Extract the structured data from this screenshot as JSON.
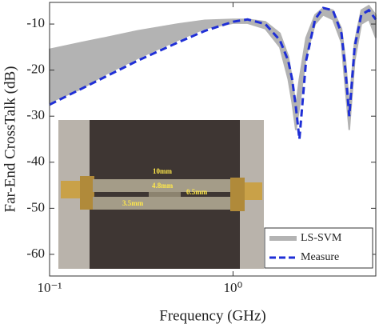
{
  "chart_data": {
    "type": "line",
    "xlabel": "Frequency (GHz)",
    "ylabel": "Far-End CrossTalk (dB)",
    "log_x": true,
    "xlim": [
      0.1,
      6
    ],
    "xticks": [
      {
        "value": 0.1,
        "label": "10⁻¹"
      },
      {
        "value": 1,
        "label": "10⁰"
      }
    ],
    "ylim": [
      -64.7,
      -5.3
    ],
    "yticks": [
      -60,
      -50,
      -40,
      -30,
      -20,
      -10
    ],
    "grid": false,
    "legend": "lower right",
    "x": [
      0.1,
      0.15,
      0.2,
      0.3,
      0.5,
      0.7,
      1,
      1.2,
      1.5,
      1.8,
      2.0,
      2.1,
      2.2,
      2.3,
      2.5,
      2.8,
      3.1,
      3.5,
      3.9,
      4.1,
      4.3,
      4.6,
      5.0,
      5.5,
      6.0
    ],
    "series": [
      {
        "name": "LS-SVM",
        "color": "#b3b3b3",
        "values": [
          -15.5,
          -14,
          -13,
          -11.5,
          -10,
          -9.2,
          -9,
          -9,
          -9.5,
          -12,
          -17,
          -22,
          -28,
          -22,
          -13,
          -8,
          -6.5,
          -7,
          -11,
          -18,
          -28,
          -14,
          -7,
          -6,
          -8
        ],
        "lower": [
          -27,
          -24,
          -21,
          -17.5,
          -13.5,
          -11,
          -9.8,
          -9.8,
          -11,
          -15,
          -22,
          -27,
          -33,
          -28,
          -17,
          -10,
          -8,
          -9,
          -14,
          -24,
          -33,
          -18,
          -10,
          -9,
          -13
        ]
      },
      {
        "name": "Measure",
        "color": "#1f2fd6",
        "dashed": true,
        "values": [
          -27.5,
          -24,
          -21.5,
          -18,
          -14,
          -11.5,
          -9.5,
          -9,
          -10,
          -13.5,
          -18,
          -22,
          -28,
          -35,
          -18,
          -9,
          -6.5,
          -7,
          -12,
          -20,
          -30,
          -15,
          -8,
          -7,
          -9
        ]
      }
    ],
    "inset_labels": [
      "10mm",
      "4.8mm",
      "0.5mm",
      "3.5mm"
    ]
  }
}
